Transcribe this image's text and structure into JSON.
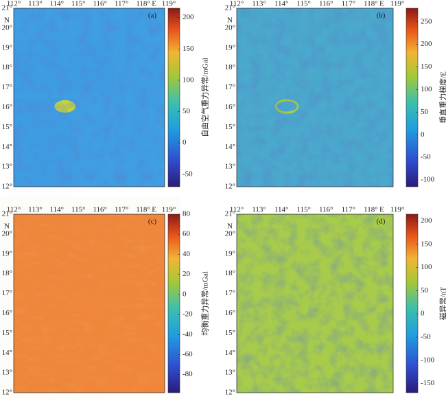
{
  "lon_labels": [
    "112°",
    "113°",
    "114°",
    "115°",
    "116°",
    "117°",
    "118°",
    "119°"
  ],
  "east": "E",
  "lat_labels": [
    "12°",
    "13°",
    "14°",
    "15°",
    "16°",
    "17°",
    "18°",
    "19°",
    "20°",
    "21°"
  ],
  "north": "N",
  "panels": [
    {
      "label": "(a)",
      "colorbar": {
        "label": "自由空气重力异常/mGal",
        "lim": [
          -70,
          215
        ],
        "ticks": [
          -50,
          0,
          50,
          100,
          150,
          200
        ]
      }
    },
    {
      "label": "(b)",
      "colorbar": {
        "label": "垂直重力梯度/E",
        "lim": [
          -115,
          280
        ],
        "ticks": [
          -100,
          -50,
          0,
          50,
          100,
          150,
          200,
          250
        ]
      }
    },
    {
      "label": "(c)",
      "colorbar": {
        "label": "均衡重力异常/mGal",
        "lim": [
          -98,
          80
        ],
        "ticks": [
          -80,
          -60,
          -40,
          -20,
          0,
          20,
          40,
          60,
          80
        ]
      }
    },
    {
      "label": "(d)",
      "colorbar": {
        "label": "磁异常/nT",
        "lim": [
          -170,
          215
        ],
        "ticks": [
          -150,
          -100,
          -50,
          0,
          50,
          100,
          150,
          200
        ]
      }
    }
  ]
}
